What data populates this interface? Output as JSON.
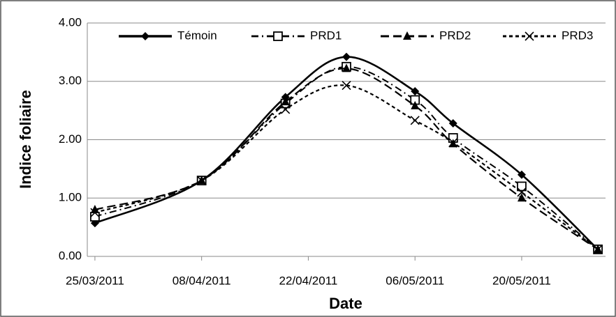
{
  "chart_data": {
    "type": "line",
    "xlabel": "Date",
    "ylabel": "Indice foliaire",
    "x": [
      "25/03/2011",
      "08/04/2011",
      "19/04/2011",
      "27/04/2011",
      "06/05/2011",
      "11/05/2011",
      "20/05/2011",
      "30/05/2011"
    ],
    "series": [
      {
        "name": "Témoin",
        "color": "#000000",
        "marker": "diamond",
        "line": "solid",
        "values": [
          0.57,
          1.3,
          2.73,
          3.42,
          2.83,
          2.28,
          1.4,
          0.12
        ]
      },
      {
        "name": "PRD1",
        "color": "#000000",
        "marker": "square",
        "line": "dashdot",
        "values": [
          0.68,
          1.3,
          2.62,
          3.25,
          2.68,
          2.03,
          1.2,
          0.12
        ]
      },
      {
        "name": "PRD2",
        "color": "#000000",
        "marker": "triangle",
        "line": "dashed",
        "values": [
          0.8,
          1.3,
          2.65,
          3.22,
          2.58,
          1.93,
          1.0,
          0.12
        ]
      },
      {
        "name": "PRD3",
        "color": "#000000",
        "marker": "x",
        "line": "dotted",
        "values": [
          0.75,
          1.3,
          2.52,
          2.93,
          2.33,
          1.95,
          1.1,
          0.12
        ]
      }
    ],
    "xlim": [
      "24/03/2011",
      "31/05/2011"
    ],
    "xticks": [
      "25/03/2011",
      "08/04/2011",
      "22/04/2011",
      "06/05/2011",
      "20/05/2011"
    ],
    "ylim": [
      0,
      4
    ],
    "yticks": [
      {
        "value": 0,
        "label": "0.00"
      },
      {
        "value": 1,
        "label": "1.00"
      },
      {
        "value": 2,
        "label": "2.00"
      },
      {
        "value": 3,
        "label": "3.00"
      },
      {
        "value": 4,
        "label": "4.00"
      }
    ],
    "grid": true,
    "legend": "top"
  }
}
